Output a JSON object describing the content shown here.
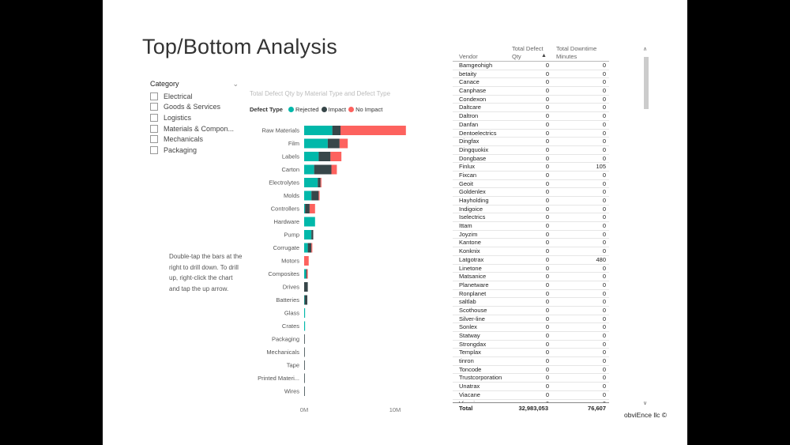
{
  "title": "Top/Bottom Analysis",
  "slicer": {
    "header": "Category",
    "items": [
      "Electrical",
      "Goods & Services",
      "Logistics",
      "Materials & Compon...",
      "Mechanicals",
      "Packaging"
    ]
  },
  "instructions": "Double-tap the bars at the right to drill down. To drill up, right-click the chart and tap the up arrow.",
  "chart_data": {
    "type": "bar",
    "orientation": "horizontal",
    "stacked": true,
    "title": "Total Defect Qty by Material Type and Defect Type",
    "legend_title": "Defect Type",
    "legend_position": "top-left",
    "categories": [
      "Raw Materials",
      "Film",
      "Labels",
      "Carton",
      "Electrolytes",
      "Molds",
      "Controllers",
      "Hardware",
      "Pump",
      "Corrugate",
      "Motors",
      "Composites",
      "Drives",
      "Batteries",
      "Glass",
      "Crates",
      "Packaging",
      "Mechanicals",
      "Tape",
      "Printed Materi...",
      "Wires"
    ],
    "series": [
      {
        "name": "Rejected",
        "color": "#01B8AA",
        "values": [
          3.1,
          2.6,
          1.6,
          1.1,
          1.5,
          0.8,
          0.1,
          1.2,
          0.8,
          0.4,
          0.0,
          0.2,
          0.0,
          0.05,
          0.1,
          0.1,
          0.0,
          0.0,
          0.0,
          0.0,
          0.0
        ]
      },
      {
        "name": "Impact",
        "color": "#374649",
        "values": [
          0.9,
          1.3,
          1.3,
          1.9,
          0.3,
          0.8,
          0.5,
          0.0,
          0.2,
          0.4,
          0.0,
          0.1,
          0.4,
          0.3,
          0.0,
          0.0,
          0.05,
          0.05,
          0.05,
          0.05,
          0.05
        ]
      },
      {
        "name": "No Impact",
        "color": "#FD625E",
        "values": [
          7.2,
          0.9,
          1.2,
          0.6,
          0.1,
          0.1,
          0.6,
          0.0,
          0.0,
          0.1,
          0.5,
          0.1,
          0.0,
          0.0,
          0.0,
          0.0,
          0.0,
          0.0,
          0.0,
          0.0,
          0.0
        ]
      }
    ],
    "x_unit": "M",
    "xlim": [
      0,
      12
    ],
    "x_ticks": [
      0,
      10
    ],
    "x_tick_labels": [
      "0M",
      "10M"
    ],
    "grid": false
  },
  "table": {
    "columns": {
      "vendor": "Vendor",
      "qty": "Total Defect Qty",
      "downtime": "Total Downtime Minutes"
    },
    "rows": [
      [
        "Bamgeohigh",
        "0",
        "0"
      ],
      [
        "betaity",
        "0",
        "0"
      ],
      [
        "Canace",
        "0",
        "0"
      ],
      [
        "Canphase",
        "0",
        "0"
      ],
      [
        "Condexon",
        "0",
        "0"
      ],
      [
        "Daltcare",
        "0",
        "0"
      ],
      [
        "Daltron",
        "0",
        "0"
      ],
      [
        "Danfan",
        "0",
        "0"
      ],
      [
        "Dentoelectrics",
        "0",
        "0"
      ],
      [
        "Dingfax",
        "0",
        "0"
      ],
      [
        "Dingquokix",
        "0",
        "0"
      ],
      [
        "Dongbase",
        "0",
        "0"
      ],
      [
        "Finlux",
        "0",
        "105"
      ],
      [
        "Fixcan",
        "0",
        "0"
      ],
      [
        "Geoit",
        "0",
        "0"
      ],
      [
        "Goldenlex",
        "0",
        "0"
      ],
      [
        "Hayholding",
        "0",
        "0"
      ],
      [
        "Indigoice",
        "0",
        "0"
      ],
      [
        "Iselectrics",
        "0",
        "0"
      ],
      [
        "Ittam",
        "0",
        "0"
      ],
      [
        "Joyzim",
        "0",
        "0"
      ],
      [
        "Kantone",
        "0",
        "0"
      ],
      [
        "Konknix",
        "0",
        "0"
      ],
      [
        "Latgotrax",
        "0",
        "480"
      ],
      [
        "Linetone",
        "0",
        "0"
      ],
      [
        "Matsanice",
        "0",
        "0"
      ],
      [
        "Planetware",
        "0",
        "0"
      ],
      [
        "Ronplanet",
        "0",
        "0"
      ],
      [
        "saltlab",
        "0",
        "0"
      ],
      [
        "Scothouse",
        "0",
        "0"
      ],
      [
        "Silver-line",
        "0",
        "0"
      ],
      [
        "Sonlex",
        "0",
        "0"
      ],
      [
        "Statway",
        "0",
        "0"
      ],
      [
        "Strongdax",
        "0",
        "0"
      ],
      [
        "Templax",
        "0",
        "0"
      ],
      [
        "tinron",
        "0",
        "0"
      ],
      [
        "Toncode",
        "0",
        "0"
      ],
      [
        "Trustcorporation",
        "0",
        "0"
      ],
      [
        "Unatrax",
        "0",
        "0"
      ],
      [
        "Viacane",
        "0",
        "0"
      ],
      [
        "Vivazim",
        "0",
        "0"
      ]
    ],
    "total": {
      "label": "Total",
      "qty": "32,983,053",
      "downtime": "76,607"
    }
  },
  "icons": {
    "slicer_chevron": "chevron-down-icon",
    "sort": "sort-ascending-icon",
    "scroll_up": "scroll-up-icon",
    "scroll_down": "scroll-down-icon"
  },
  "footer": "obviEnce llc ©"
}
